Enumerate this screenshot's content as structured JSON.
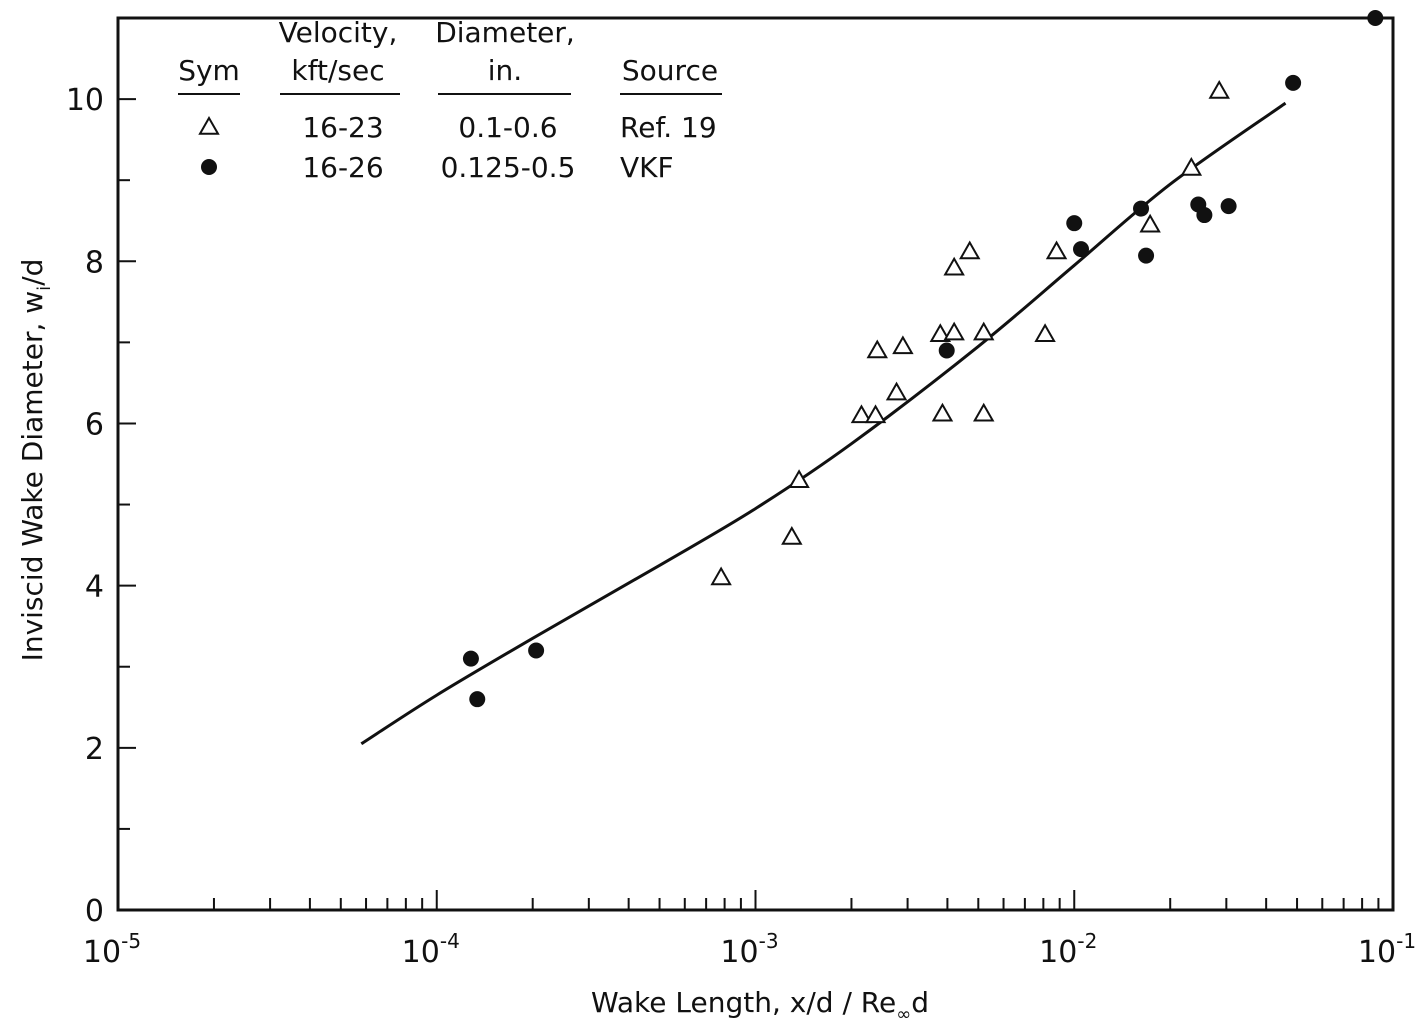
{
  "chart_data": {
    "type": "scatter",
    "xlabel": "Wake Length,  x/d / Re",
    "xlabel_sub": "∞",
    "xlabel_tail": "d",
    "ylabel": "Inviscid Wake Diameter,  w",
    "ylabel_sub": "i",
    "ylabel_tail": "/d",
    "xscale": "log",
    "xlim": [
      1e-05,
      0.1
    ],
    "ylim": [
      0,
      11
    ],
    "x_ticks": [
      {
        "base": "10",
        "exp": "-5"
      },
      {
        "base": "10",
        "exp": "-4"
      },
      {
        "base": "10",
        "exp": "-3"
      },
      {
        "base": "10",
        "exp": "-2"
      },
      {
        "base": "10",
        "exp": "-1"
      }
    ],
    "y_ticks": [
      "0",
      "2",
      "4",
      "6",
      "8",
      "10"
    ],
    "grid": false,
    "legend": {
      "placement": "top-left",
      "headers": [
        {
          "lines": [
            "Sym"
          ]
        },
        {
          "lines": [
            "Velocity,",
            "kft/sec"
          ]
        },
        {
          "lines": [
            "Diameter,",
            "in."
          ]
        },
        {
          "lines": [
            "Source"
          ]
        }
      ],
      "rows": [
        {
          "marker": "open-triangle",
          "velocity": "16-23",
          "diameter": "0.1-0.6",
          "source": "Ref. 19"
        },
        {
          "marker": "filled-circle",
          "velocity": "16-26",
          "diameter": "0.125-0.5",
          "source": "VKF"
        }
      ]
    },
    "series": [
      {
        "name": "Ref. 19",
        "marker": "open-triangle",
        "points": [
          [
            0.00078,
            4.1
          ],
          [
            0.0013,
            4.6
          ],
          [
            0.00137,
            5.3
          ],
          [
            0.00215,
            6.1
          ],
          [
            0.00238,
            6.1
          ],
          [
            0.00241,
            6.9
          ],
          [
            0.0029,
            6.95
          ],
          [
            0.00277,
            6.38
          ],
          [
            0.0038,
            7.1
          ],
          [
            0.00386,
            6.12
          ],
          [
            0.0042,
            7.12
          ],
          [
            0.0042,
            7.92
          ],
          [
            0.0047,
            8.12
          ],
          [
            0.0052,
            6.12
          ],
          [
            0.0052,
            7.12
          ],
          [
            0.0081,
            7.1
          ],
          [
            0.0088,
            8.12
          ],
          [
            0.0173,
            8.45
          ],
          [
            0.0233,
            9.15
          ],
          [
            0.0285,
            10.1
          ]
        ]
      },
      {
        "name": "VKF",
        "marker": "filled-circle",
        "points": [
          [
            0.000128,
            3.1
          ],
          [
            0.000134,
            2.6
          ],
          [
            0.000205,
            3.2
          ],
          [
            0.00398,
            6.9
          ],
          [
            0.01,
            8.47
          ],
          [
            0.0105,
            8.15
          ],
          [
            0.0162,
            8.65
          ],
          [
            0.0168,
            8.07
          ],
          [
            0.0245,
            8.7
          ],
          [
            0.0256,
            8.57
          ],
          [
            0.0305,
            8.68
          ],
          [
            0.0486,
            10.2
          ],
          [
            0.088,
            11.0
          ]
        ]
      }
    ],
    "fit_curve": {
      "points": [
        [
          5.8e-05,
          2.05
        ],
        [
          0.0001,
          2.65
        ],
        [
          0.0002,
          3.35
        ],
        [
          0.0005,
          4.25
        ],
        [
          0.001,
          4.95
        ],
        [
          0.002,
          5.75
        ],
        [
          0.005,
          6.95
        ],
        [
          0.01,
          7.95
        ],
        [
          0.02,
          8.95
        ],
        [
          0.046,
          9.95
        ]
      ]
    }
  }
}
